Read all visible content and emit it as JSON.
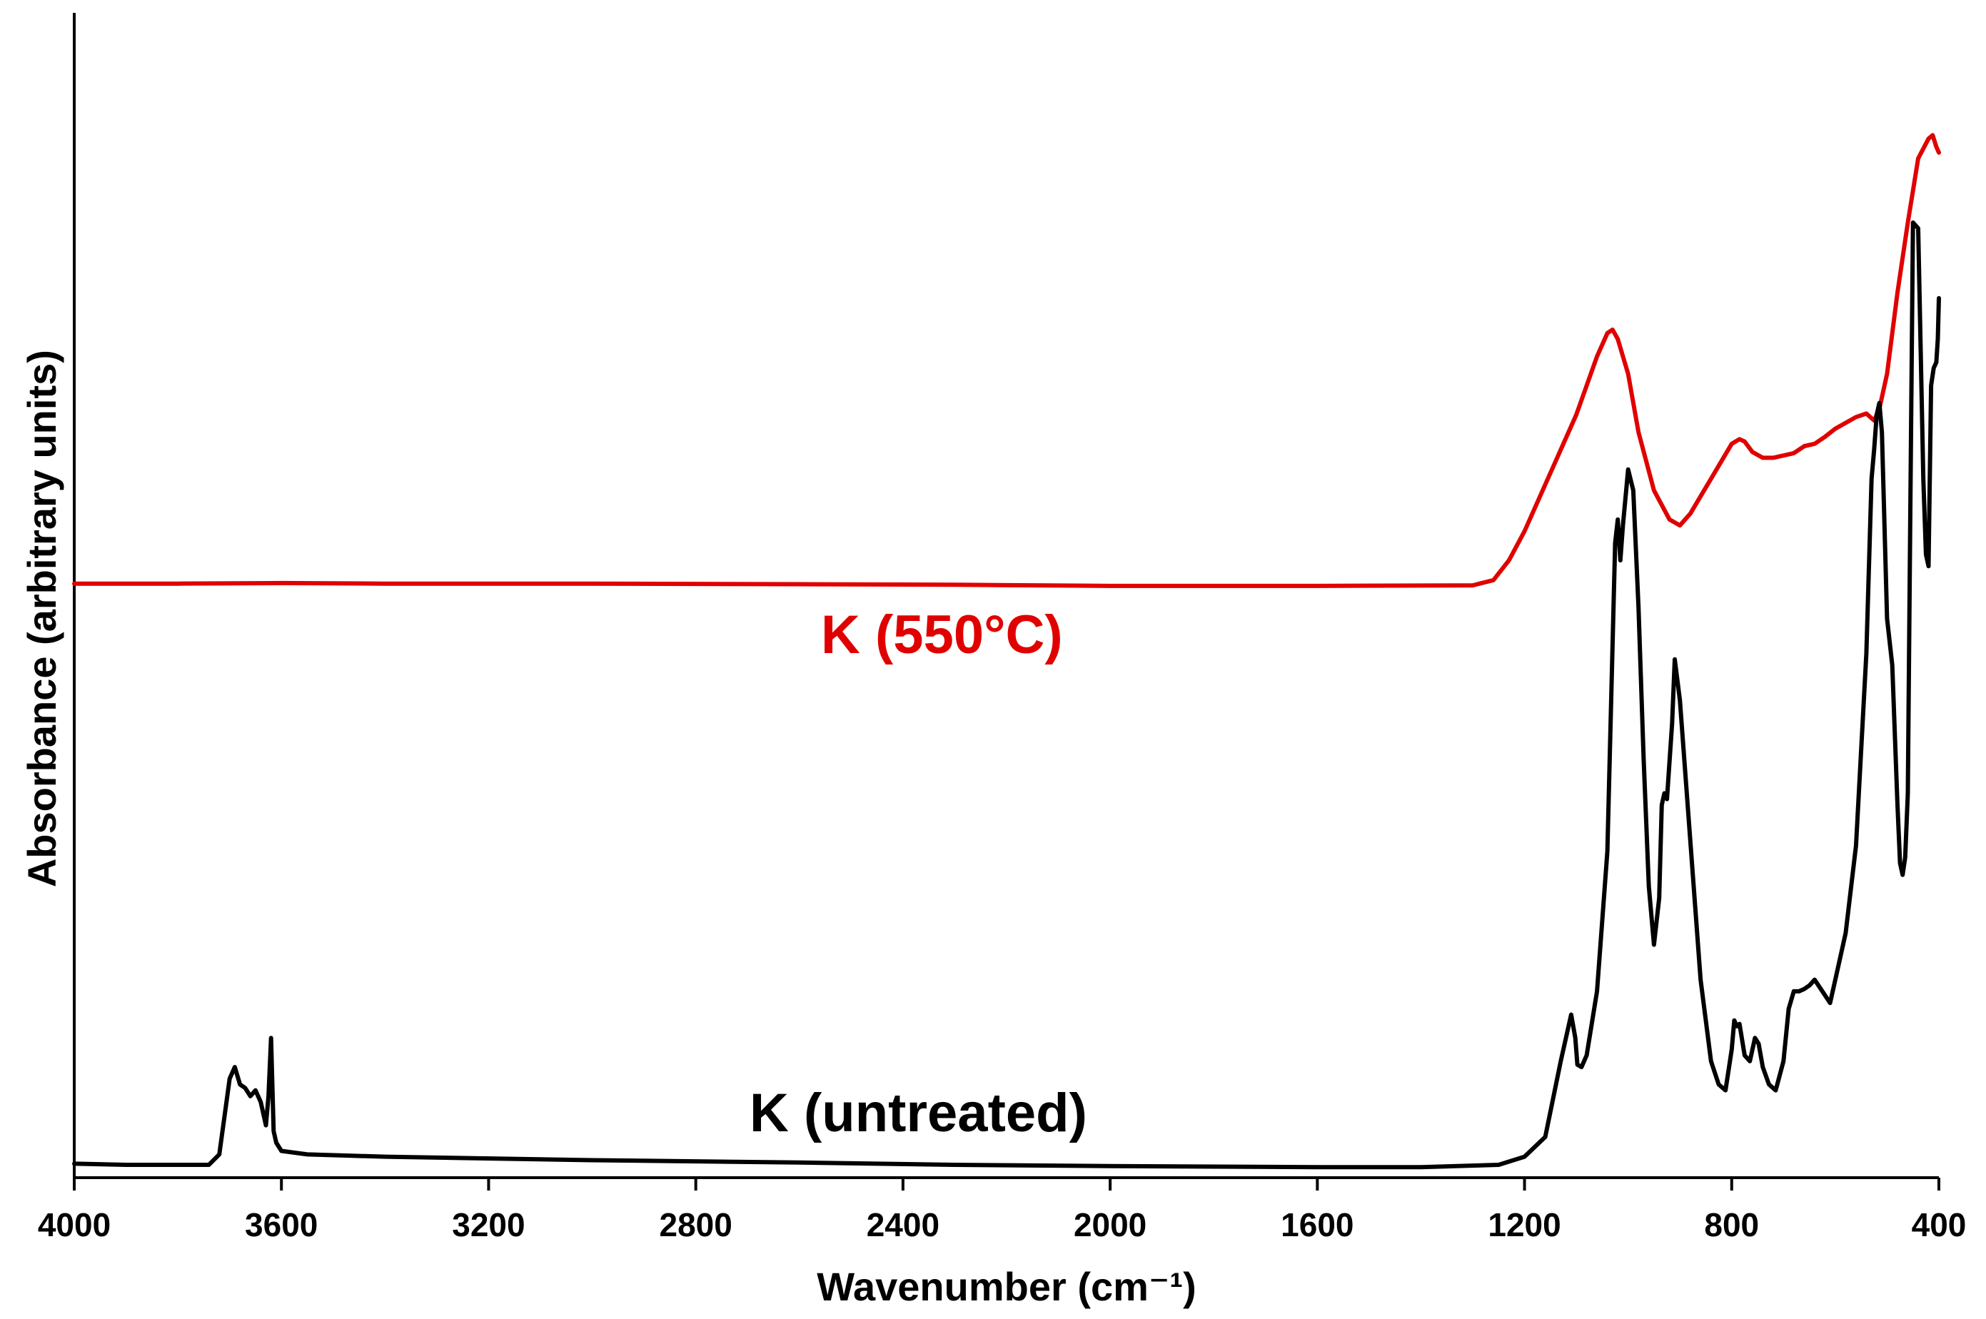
{
  "chart_data": {
    "type": "line",
    "title": "",
    "xlabel": "Wavenumber (cm⁻¹)",
    "ylabel": "Absorbance (arbitrary units)",
    "xlim": [
      4000,
      400
    ],
    "ylim": [
      0,
      100
    ],
    "x_reversed": true,
    "y_ticks_shown": false,
    "xticks": [
      4000,
      3600,
      3200,
      2800,
      2400,
      2000,
      1600,
      1200,
      800,
      400
    ],
    "xtick_labels": [
      "4000",
      "3600",
      "3200",
      "2800",
      "2400",
      "2000",
      "1600",
      "1200",
      "800",
      "400"
    ],
    "series": [
      {
        "name": "K (550°C)",
        "label": "K (550°C)",
        "color": "#e00000",
        "x": [
          4000,
          3800,
          3600,
          3400,
          3000,
          2600,
          2300,
          2000,
          1600,
          1300,
          1260,
          1230,
          1200,
          1170,
          1140,
          1100,
          1060,
          1040,
          1030,
          1020,
          1000,
          980,
          950,
          920,
          900,
          880,
          860,
          840,
          820,
          800,
          785,
          775,
          760,
          740,
          720,
          700,
          680,
          660,
          640,
          620,
          600,
          580,
          560,
          540,
          525,
          515,
          500,
          480,
          460,
          440,
          420,
          412,
          405,
          400
        ],
        "y": [
          51.0,
          51.0,
          51.05,
          51.0,
          51.0,
          50.95,
          50.9,
          50.8,
          50.8,
          50.85,
          51.3,
          53.0,
          55.5,
          58.5,
          61.5,
          65.5,
          70.5,
          72.5,
          72.8,
          72.0,
          69.0,
          64.0,
          59.0,
          56.5,
          56.0,
          57.0,
          58.5,
          60.0,
          61.5,
          63.0,
          63.4,
          63.2,
          62.3,
          61.8,
          61.8,
          62.0,
          62.2,
          62.8,
          63.0,
          63.6,
          64.3,
          64.8,
          65.3,
          65.6,
          65.0,
          66.0,
          69.0,
          76.0,
          82.0,
          87.5,
          89.2,
          89.5,
          88.5,
          88.0
        ],
        "color_note": "red"
      },
      {
        "name": "K (untreated)",
        "label": "K (untreated)",
        "color": "#000000",
        "x": [
          4000,
          3900,
          3800,
          3740,
          3720,
          3700,
          3690,
          3680,
          3670,
          3660,
          3650,
          3640,
          3630,
          3625,
          3620,
          3615,
          3610,
          3600,
          3550,
          3400,
          3000,
          2600,
          2300,
          2000,
          1600,
          1400,
          1250,
          1200,
          1160,
          1130,
          1110,
          1102,
          1098,
          1090,
          1080,
          1060,
          1040,
          1025,
          1020,
          1015,
          1010,
          1000,
          990,
          980,
          970,
          960,
          950,
          940,
          935,
          930,
          925,
          915,
          910,
          900,
          880,
          860,
          840,
          825,
          812,
          800,
          795,
          790,
          785,
          775,
          765,
          755,
          748,
          740,
          728,
          715,
          700,
          690,
          680,
          670,
          660,
          650,
          640,
          625,
          610,
          600,
          580,
          560,
          540,
          530,
          525,
          520,
          515,
          510,
          500,
          490,
          480,
          475,
          470,
          465,
          460,
          455,
          450,
          440,
          430,
          425,
          420,
          415,
          410,
          405,
          402,
          400
        ],
        "y": [
          1.2,
          1.1,
          1.1,
          1.1,
          2.0,
          8.5,
          9.5,
          8.0,
          7.7,
          7.0,
          7.5,
          6.5,
          4.5,
          7.0,
          12.0,
          4.0,
          3.0,
          2.3,
          2.0,
          1.8,
          1.5,
          1.3,
          1.1,
          1.0,
          0.9,
          0.9,
          1.1,
          1.8,
          3.5,
          10.0,
          14.0,
          12.0,
          9.7,
          9.5,
          10.5,
          16.0,
          28.0,
          54.5,
          56.5,
          53.0,
          56.0,
          60.8,
          59.0,
          49.0,
          36.0,
          25.0,
          20.0,
          24.0,
          32.0,
          33.0,
          32.5,
          39.0,
          44.5,
          41.0,
          29.0,
          17.0,
          10.0,
          8.0,
          7.5,
          11.0,
          13.5,
          13.0,
          13.2,
          10.5,
          10.0,
          12.0,
          11.5,
          9.5,
          8.0,
          7.5,
          10.0,
          14.5,
          16.0,
          16.0,
          16.2,
          16.5,
          17.0,
          16.0,
          15.0,
          17.0,
          21.0,
          28.5,
          45.0,
          60.0,
          62.5,
          65.5,
          66.5,
          64.0,
          48.0,
          44.0,
          32.0,
          27.0,
          26.0,
          27.5,
          33.0,
          58.0,
          82.0,
          81.5,
          60.0,
          53.5,
          52.5,
          68.0,
          69.5,
          70.0,
          72.0,
          75.5
        ]
      }
    ]
  }
}
